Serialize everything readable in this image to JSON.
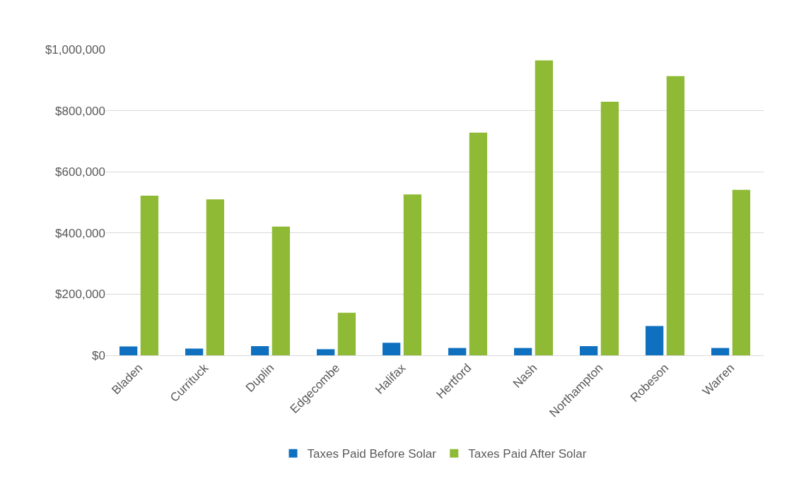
{
  "chart_data": {
    "type": "bar",
    "categories": [
      "Bladen",
      "Currituck",
      "Duplin",
      "Edgecombe",
      "Halifax",
      "Hertford",
      "Nash",
      "Northampton",
      "Robeson",
      "Warren"
    ],
    "series": [
      {
        "name": "Taxes Paid Before Solar",
        "color": "#1070c0",
        "values": [
          29000,
          22000,
          30000,
          20000,
          41000,
          24000,
          24000,
          30000,
          96000,
          24000
        ]
      },
      {
        "name": "Taxes Paid After Solar",
        "color": "#8fba35",
        "values": [
          522000,
          510000,
          421000,
          139000,
          526000,
          728000,
          964000,
          829000,
          913000,
          541000
        ]
      }
    ],
    "ylim": [
      0,
      1000000
    ],
    "yticks": [
      {
        "value": 0,
        "label": "$0"
      },
      {
        "value": 200000,
        "label": "$200,000"
      },
      {
        "value": 400000,
        "label": "$400,000"
      },
      {
        "value": 600000,
        "label": "$600,000"
      },
      {
        "value": 800000,
        "label": "$800,000"
      },
      {
        "value": 1000000,
        "label": "$1,000,000"
      }
    ],
    "grid": "y",
    "legend": "bottom"
  }
}
